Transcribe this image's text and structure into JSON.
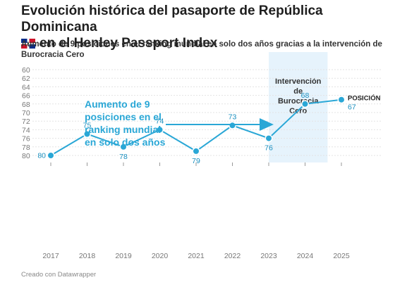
{
  "header": {
    "title_line1": "Evolución histórica del pasaporte de República Dominicana",
    "title_line2": "en el Henley Passport Index",
    "flag_icon": "dominican-republic-flag-icon",
    "subtitle": "Aumento de 9 posiciones en el ranking mundial en solo dos años gracias a la intervención de Burocracia Cero"
  },
  "footer": {
    "credit": "Creado con Datawrapper"
  },
  "colors": {
    "line": "#2aa7d6",
    "label": "#1a8fbf",
    "highlight": "#e6f3fc",
    "grid": "#e3e3e3"
  },
  "chart_data": {
    "type": "line",
    "x": [
      "2017",
      "2018",
      "2019",
      "2020",
      "2021",
      "2022",
      "2023",
      "2024",
      "2025"
    ],
    "series": [
      {
        "name": "POSICIÓN",
        "values": [
          80,
          75,
          78,
          74,
          79,
          73,
          76,
          68,
          67
        ]
      }
    ],
    "ylim": [
      60,
      80
    ],
    "y_inverted": true,
    "y_ticks": [
      60,
      62,
      64,
      66,
      68,
      70,
      72,
      74,
      76,
      78,
      80
    ],
    "grid": true,
    "highlight_range": [
      "2023",
      "2024"
    ],
    "highlight_label": [
      "Intervención",
      "de",
      "Burocracia",
      "Cero"
    ],
    "annotation": [
      "Aumento de 9",
      "posiciones en el",
      "ranking mundial",
      "en solo dos años"
    ],
    "end_label": "POSICIÓN"
  }
}
